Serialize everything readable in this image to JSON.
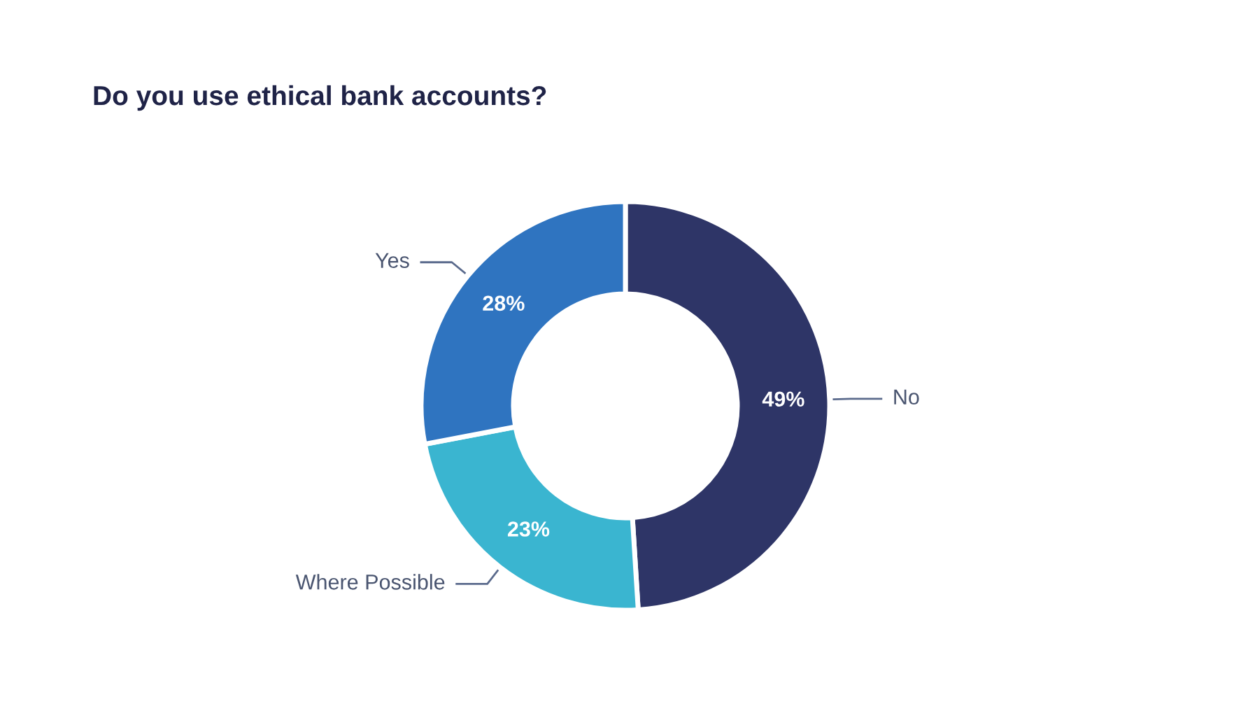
{
  "chart_data": {
    "type": "donut",
    "title": "Do you use ethical bank accounts?",
    "categories": [
      "No",
      "Where Possible",
      "Yes"
    ],
    "values": [
      49,
      23,
      28
    ],
    "colors": [
      "#2e3567",
      "#3ab5d0",
      "#2f74c0"
    ],
    "value_labels": [
      "49%",
      "23%",
      "28%"
    ],
    "legend": false
  }
}
